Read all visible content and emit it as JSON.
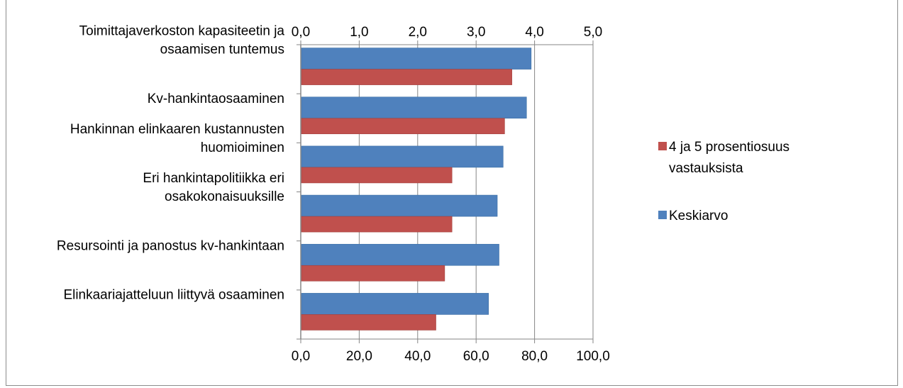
{
  "chart_data": {
    "type": "bar",
    "orientation": "horizontal",
    "categories": [
      [
        "Toimittajaverkoston kapasiteetin ja",
        "osaamisen tuntemus"
      ],
      [
        "Kv-hankintaosaaminen"
      ],
      [
        "Hankinnan elinkaaren kustannusten",
        "huomioiminen"
      ],
      [
        "Eri hankintapolitiikka eri",
        "osakokonaisuuksille"
      ],
      [
        "Resursointi ja panostus kv-hankintaan"
      ],
      [
        "Elinkaariajatteluun liittyvä osaaminen"
      ]
    ],
    "series": [
      {
        "name": "Keskiarvo",
        "axis": "top",
        "color": "#4f81bd",
        "values": [
          3.93,
          3.85,
          3.45,
          3.35,
          3.38,
          3.2
        ]
      },
      {
        "name": "4 ja 5 prosentiosuus vastauksista",
        "axis": "bottom",
        "color": "#c0504d",
        "values": [
          72.0,
          69.5,
          51.5,
          51.5,
          49.0,
          46.0
        ]
      }
    ],
    "top_axis": {
      "min": 0,
      "max": 5,
      "ticks": [
        "0,0",
        "1,0",
        "2,0",
        "3,0",
        "4,0",
        "5,0"
      ]
    },
    "bottom_axis": {
      "min": 0,
      "max": 100,
      "ticks": [
        "0,0",
        "20,0",
        "40,0",
        "60,0",
        "80,0",
        "100,0"
      ]
    },
    "legend": {
      "placement": "right",
      "entries": [
        {
          "label_lines": [
            "4 ja 5 prosentiosuus",
            "vastauksista"
          ],
          "color": "#c0504d"
        },
        {
          "label_lines": [
            "Keskiarvo"
          ],
          "color": "#4f81bd"
        }
      ]
    },
    "grid": true
  }
}
